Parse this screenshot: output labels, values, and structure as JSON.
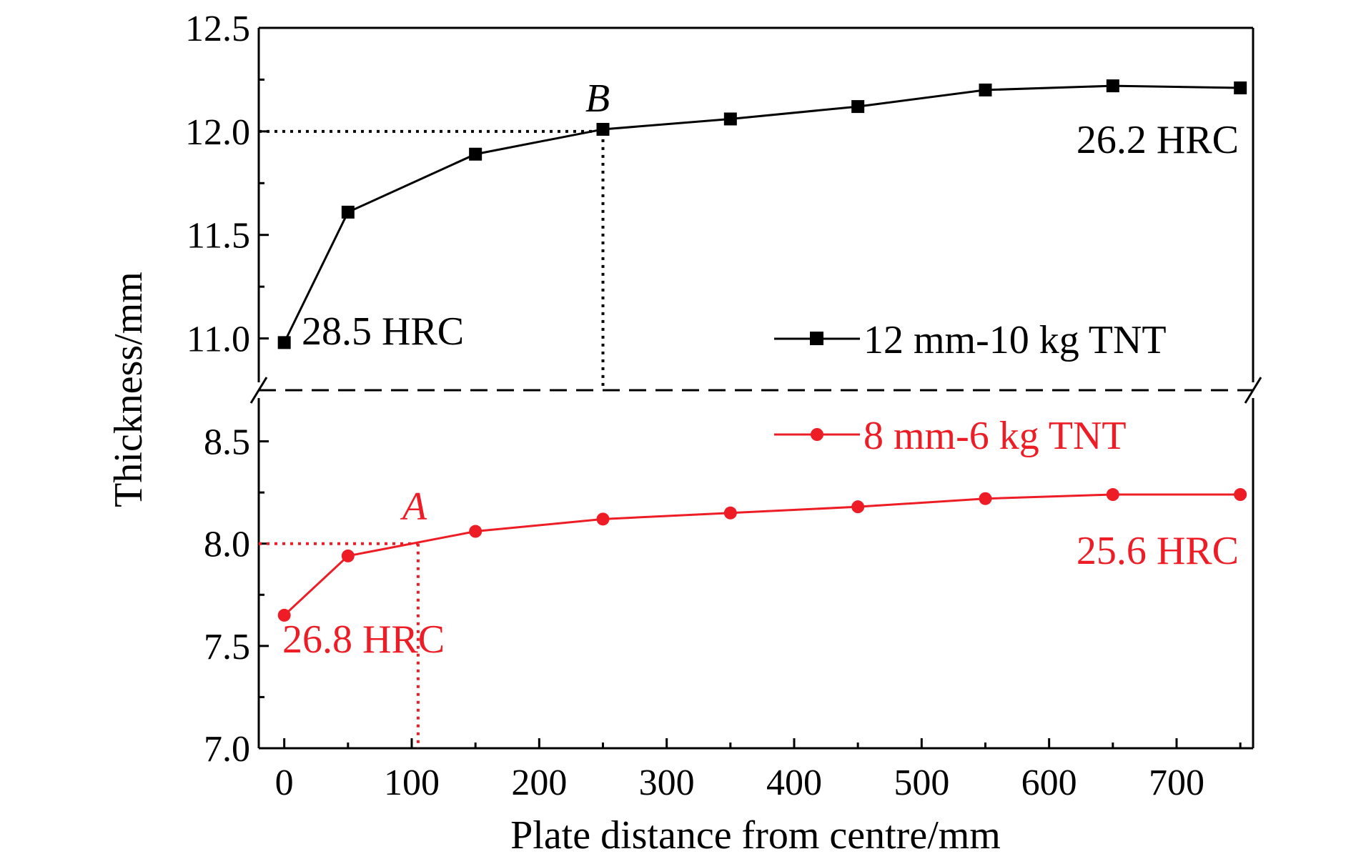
{
  "chart_data": {
    "type": "line",
    "xlabel": "Plate distance from centre/mm",
    "ylabel": "Thickness/mm",
    "xlim": [
      -20,
      760
    ],
    "ylim_lower": [
      7.0,
      8.75
    ],
    "ylim_upper": [
      10.75,
      12.5
    ],
    "x_ticks": [
      0,
      100,
      200,
      300,
      400,
      500,
      600,
      700
    ],
    "x_tick_labels": [
      "0",
      "100",
      "200",
      "300",
      "400",
      "500",
      "600",
      "700"
    ],
    "y_ticks": [
      7.0,
      7.5,
      8.0,
      8.5,
      11.0,
      11.5,
      12.0,
      12.5
    ],
    "y_tick_labels": [
      "7.0",
      "7.5",
      "8.0",
      "8.5",
      "11.0",
      "11.5",
      "12.0",
      "12.5"
    ],
    "axis_break": "between 8.75 and 10.75",
    "legend_placement": "right",
    "series": [
      {
        "name": "12 mm-10 kg TNT",
        "color": "#000000",
        "marker": "square",
        "x": [
          0,
          50,
          150,
          250,
          350,
          450,
          550,
          650,
          750
        ],
        "y": [
          10.98,
          11.61,
          11.89,
          12.01,
          12.06,
          12.12,
          12.2,
          12.22,
          12.21
        ]
      },
      {
        "name": "8 mm-6 kg TNT",
        "color": "#ee1c25",
        "marker": "circle",
        "x": [
          0,
          50,
          150,
          250,
          350,
          450,
          550,
          650,
          750
        ],
        "y": [
          7.65,
          7.94,
          8.06,
          8.12,
          8.15,
          8.18,
          8.22,
          8.24,
          8.24
        ]
      }
    ],
    "reference_lines": [
      {
        "label": "B",
        "x": 250,
        "y": 12.0,
        "color": "#000000"
      },
      {
        "label": "A",
        "x": 105,
        "y": 8.0,
        "color": "#ee1c25"
      }
    ],
    "annotations": [
      {
        "text": "28.5 HRC",
        "color": "#000000"
      },
      {
        "text": "26.2 HRC",
        "color": "#000000"
      },
      {
        "text": "26.8 HRC",
        "color": "#ee1c25"
      },
      {
        "text": "25.6 HRC",
        "color": "#ee1c25"
      }
    ]
  }
}
